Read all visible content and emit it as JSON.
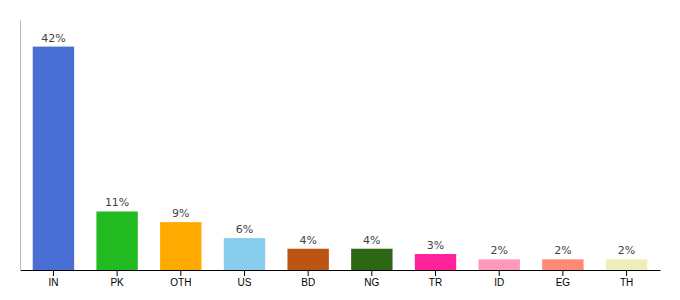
{
  "chart_data": {
    "type": "bar",
    "categories": [
      "IN",
      "PK",
      "OTH",
      "US",
      "BD",
      "NG",
      "TR",
      "ID",
      "EG",
      "TH"
    ],
    "values": [
      42,
      11,
      9,
      6,
      4,
      4,
      3,
      2,
      2,
      2
    ],
    "value_labels": [
      "42%",
      "11%",
      "9%",
      "6%",
      "4%",
      "4%",
      "3%",
      "2%",
      "2%",
      "2%"
    ],
    "colors": [
      "#4a6fd4",
      "#22bb22",
      "#ffaa00",
      "#88ccee",
      "#bb5511",
      "#2d6614",
      "#ff2299",
      "#ff99bb",
      "#ff8877",
      "#eeeebb"
    ],
    "ylim": [
      0,
      47
    ],
    "data_labels": true,
    "tick_labels": "x",
    "grid": false
  }
}
